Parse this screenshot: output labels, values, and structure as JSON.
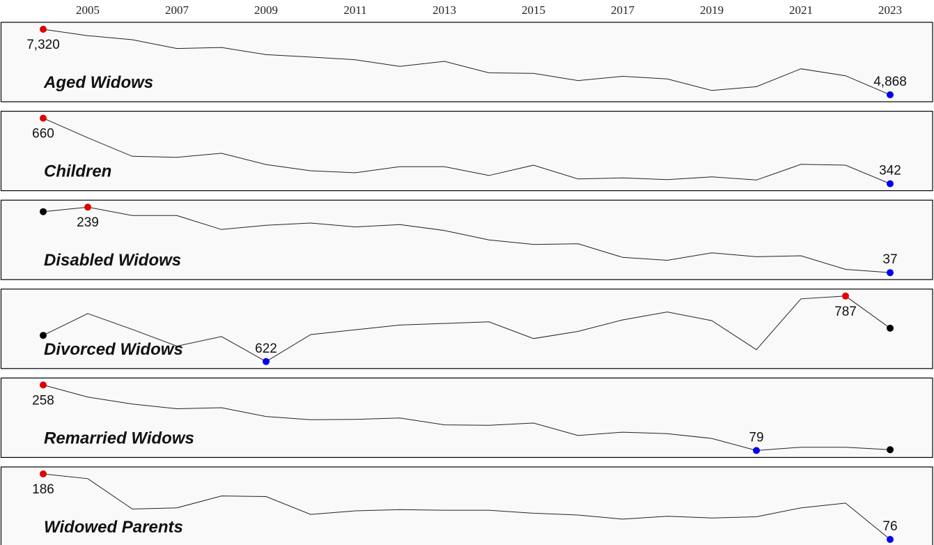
{
  "chart_data": {
    "type": "line",
    "layout": "small-multiples",
    "x": [
      2004,
      2005,
      2006,
      2007,
      2008,
      2009,
      2010,
      2011,
      2012,
      2013,
      2014,
      2015,
      2016,
      2017,
      2018,
      2019,
      2020,
      2021,
      2022,
      2023
    ],
    "x_tick_labels": [
      "2005",
      "2007",
      "2009",
      "2011",
      "2013",
      "2015",
      "2017",
      "2019",
      "2021",
      "2023"
    ],
    "x_tick_values": [
      2005,
      2007,
      2009,
      2011,
      2013,
      2015,
      2017,
      2019,
      2021,
      2023
    ],
    "x_axis_position": "top",
    "grid": false,
    "marker_colors": {
      "max": "#e00000",
      "min": "#0000ee",
      "endpoint": "#000000"
    },
    "series": [
      {
        "name": "Aged Widows",
        "values": [
          7320,
          7080,
          6930,
          6600,
          6640,
          6370,
          6280,
          6180,
          5930,
          6120,
          5690,
          5670,
          5400,
          5560,
          5460,
          5030,
          5170,
          5840,
          5580,
          4868
        ],
        "max_label": "7,320",
        "min_label": "4,868"
      },
      {
        "name": "Children",
        "values": [
          660,
          565,
          475,
          470,
          490,
          435,
          405,
          395,
          425,
          425,
          382,
          432,
          365,
          370,
          362,
          375,
          360,
          436,
          432,
          342
        ]
      },
      {
        "name": "Disabled Widows",
        "values": [
          225,
          239,
          213,
          213,
          170,
          183,
          190,
          178,
          185,
          167,
          138,
          124,
          126,
          84,
          75,
          98,
          86,
          89,
          47,
          37
        ]
      },
      {
        "name": "Divorced Widows",
        "values": [
          688,
          743,
          703,
          661,
          685,
          622,
          690,
          702,
          714,
          718,
          722,
          680,
          698,
          727,
          747,
          725,
          652,
          780,
          787,
          706
        ]
      },
      {
        "name": "Remarried Widows",
        "values": [
          258,
          225,
          206,
          193,
          196,
          172,
          163,
          164,
          168,
          149,
          148,
          154,
          120,
          129,
          125,
          112,
          79,
          88,
          88,
          81
        ]
      },
      {
        "name": "Widowed Parents",
        "values": [
          186,
          178,
          127,
          129,
          149,
          148,
          118,
          124,
          126,
          125,
          125,
          120,
          117,
          110,
          115,
          112,
          114,
          129,
          137,
          76
        ]
      }
    ]
  }
}
